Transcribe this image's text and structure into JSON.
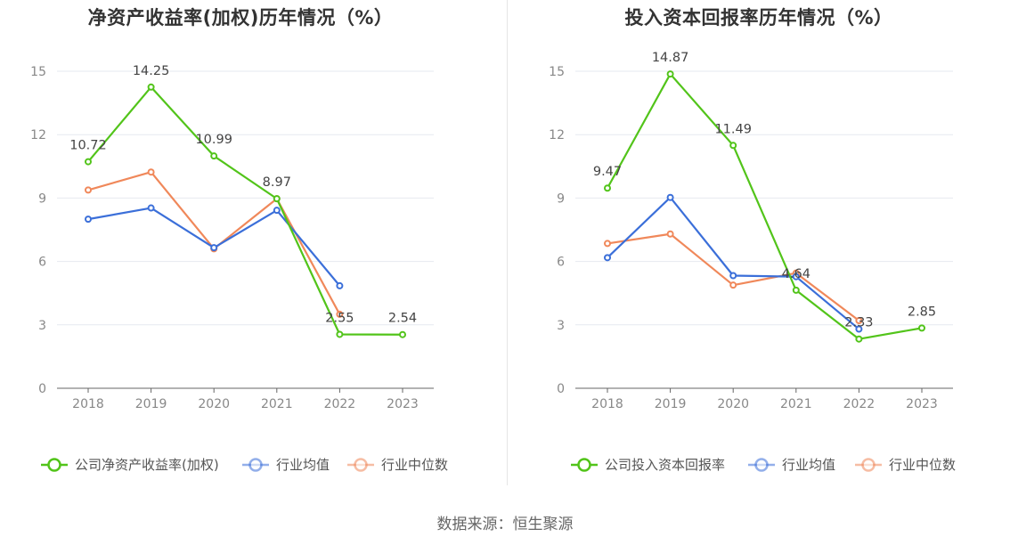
{
  "source_text": "数据来源：恒生聚源",
  "chart_data": [
    {
      "type": "line",
      "title": "净资产收益率(加权)历年情况（%）",
      "categories": [
        "2018",
        "2019",
        "2020",
        "2021",
        "2022",
        "2023"
      ],
      "ylim": [
        0,
        15
      ],
      "yticks": [
        0,
        3,
        6,
        9,
        12,
        15
      ],
      "grid": true,
      "legend_position": "bottom",
      "series": [
        {
          "name": "公司净资产收益率(加权)",
          "color": "#52c41a",
          "values": [
            10.72,
            14.25,
            10.99,
            8.97,
            2.55,
            2.54
          ],
          "labels": [
            "10.72",
            "14.25",
            "10.99",
            "8.97",
            "2.55",
            "2.54"
          ]
        },
        {
          "name": "行业均值",
          "color": "#3b6fd9",
          "values": [
            8.0,
            8.53,
            6.65,
            8.42,
            4.85,
            null
          ]
        },
        {
          "name": "行业中位数",
          "color": "#f0885a",
          "values": [
            9.38,
            10.23,
            6.6,
            8.97,
            3.5,
            null
          ]
        }
      ]
    },
    {
      "type": "line",
      "title": "投入资本回报率历年情况（%）",
      "categories": [
        "2018",
        "2019",
        "2020",
        "2021",
        "2022",
        "2023"
      ],
      "ylim": [
        0,
        15
      ],
      "yticks": [
        0,
        3,
        6,
        9,
        12,
        15
      ],
      "grid": true,
      "legend_position": "bottom",
      "series": [
        {
          "name": "公司投入资本回报率",
          "color": "#52c41a",
          "values": [
            9.47,
            14.87,
            11.49,
            4.64,
            2.33,
            2.85
          ],
          "labels": [
            "9.47",
            "14.87",
            "11.49",
            "4.64",
            "2.33",
            "2.85"
          ]
        },
        {
          "name": "行业均值",
          "color": "#3b6fd9",
          "values": [
            6.18,
            9.03,
            5.33,
            5.28,
            2.8,
            null
          ]
        },
        {
          "name": "行业中位数",
          "color": "#f0885a",
          "values": [
            6.85,
            7.3,
            4.88,
            5.45,
            3.2,
            null
          ]
        }
      ]
    }
  ]
}
